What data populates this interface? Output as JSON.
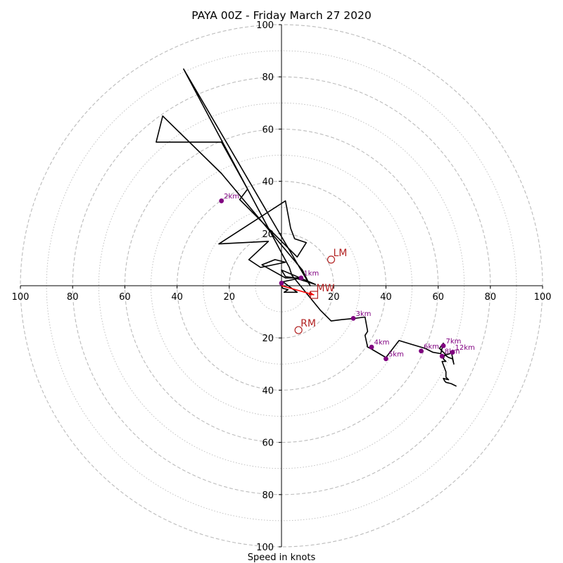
{
  "chart_data": {
    "type": "scatter",
    "subtype": "hodograph",
    "title": "PAYA 00Z - Friday March 27 2020",
    "xlabel": "Speed in knots",
    "axis_range": [
      -100,
      100
    ],
    "ring_step_major": 20,
    "ring_step_minor": 10,
    "tick_labels": [
      "100",
      "80",
      "60",
      "40",
      "20",
      "20",
      "40",
      "60",
      "80",
      "100"
    ],
    "colors": {
      "trace": "#000000",
      "height_markers": "#800080",
      "motion": "#b22222",
      "grid": "#bbbbbb"
    },
    "hodograph_u": [
      0,
      0.5,
      2.5,
      1,
      6,
      0.5,
      7.5,
      5,
      1.5,
      0,
      13,
      5,
      1.5,
      -7.5,
      -2.5,
      1.5,
      -8,
      -12.5,
      -5,
      -24,
      1.5,
      3.5,
      5,
      9.5,
      6,
      -16,
      -13,
      -23,
      -48,
      -45.5,
      -23,
      8,
      11,
      -37.5,
      3,
      4,
      15,
      19,
      23,
      28,
      32,
      33,
      32,
      33,
      34,
      40,
      45,
      50,
      55,
      58,
      61,
      62,
      60.5,
      63,
      64.5,
      65,
      66,
      65.5,
      64,
      62.5,
      62,
      63,
      61.5,
      63,
      63,
      64,
      62,
      62.5,
      63,
      65,
      66,
      67
    ],
    "hodograph_v": [
      0,
      -1,
      -1.5,
      -2.5,
      -2.5,
      1.5,
      3,
      3,
      3.5,
      6,
      0.5,
      3,
      3,
      8,
      10,
      9,
      7,
      10,
      17,
      16,
      32.5,
      22,
      18,
      16.5,
      11,
      33,
      37,
      55,
      55,
      65,
      43,
      6,
      0,
      83,
      7,
      4,
      -9.5,
      -13.5,
      -13,
      -12.5,
      -12,
      -17.5,
      -19,
      -23.5,
      -24,
      -27.5,
      -21,
      -22.5,
      -24,
      -25.5,
      -26,
      -22,
      -24,
      -26.5,
      -26,
      -25,
      -30,
      -28,
      -27.5,
      -26.5,
      -28,
      -29,
      -29,
      -33,
      -35,
      -36,
      -35.5,
      -36.5,
      -37,
      -37.5,
      -38,
      -38.5
    ],
    "height_markers": [
      {
        "label": "1km",
        "u": 7.5,
        "v": 3
      },
      {
        "label": "2km",
        "u": -23,
        "v": 32.5
      },
      {
        "label": "3km",
        "u": 27.5,
        "v": -12.5
      },
      {
        "label": "4km",
        "u": 34.5,
        "v": -23.5
      },
      {
        "label": "5km",
        "u": 40,
        "v": -28
      },
      {
        "label": "6km",
        "u": 53.5,
        "v": -25
      },
      {
        "label": "7km",
        "u": 62,
        "v": -23
      },
      {
        "label": "8km",
        "u": 61.5,
        "v": -27
      },
      {
        "label": "12km",
        "u": 65.5,
        "v": -25.5
      },
      {
        "label": "",
        "u": 0,
        "v": 1
      }
    ],
    "storm_motion": [
      {
        "label": "LM",
        "u": 19,
        "v": 10,
        "marker": "circle"
      },
      {
        "label": "RM",
        "u": 6.5,
        "v": -17,
        "marker": "circle"
      },
      {
        "label": "MW",
        "u": 12.5,
        "v": -3.5,
        "marker": "square"
      }
    ],
    "mean_wind_vector": {
      "u": 12.5,
      "v": -3.5
    }
  }
}
